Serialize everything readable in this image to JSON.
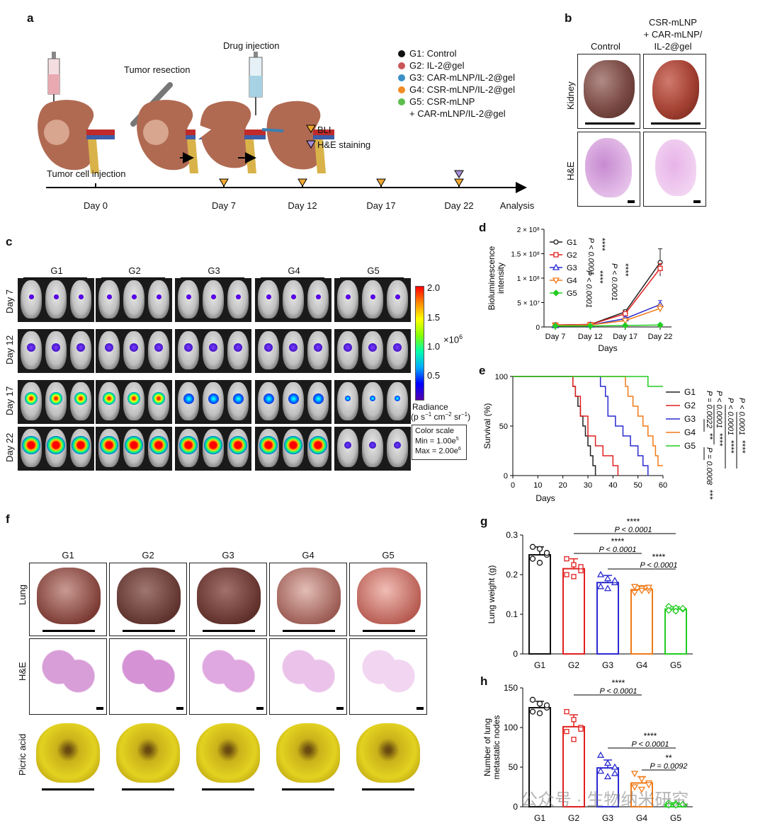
{
  "panel_a": {
    "label": "a",
    "drug_injection": "Drug injection",
    "tumor_resection": "Tumor resection",
    "tumor_cell_injection": "Tumor cell injection",
    "legend": [
      "G1: Control",
      "G2: IL-2@gel",
      "G3: CAR-mLNP/IL-2@gel",
      "G4: CSR-mLNP/IL-2@gel",
      "G5: CSR-mLNP",
      "+ CAR-mLNP/IL-2@gel"
    ],
    "legend_colors": [
      "#111111",
      "#c9575a",
      "#3a8fc6",
      "#f08c24",
      "#5cbd4d"
    ],
    "markers": [
      "BLI",
      "H&E staining"
    ],
    "timeline": [
      "Day 0",
      "Day 7",
      "Day 12",
      "Day 17",
      "Day 22",
      "Analysis"
    ]
  },
  "panel_b": {
    "label": "b",
    "col1": "Control",
    "col2_line1": "CSR-mLNP",
    "col2_line2": "+ CAR-mLNP/",
    "col2_line3": "IL-2@gel",
    "row1": "Kidney",
    "row2": "H&E"
  },
  "panel_c": {
    "label": "c",
    "groups": [
      "G1",
      "G2",
      "G3",
      "G4",
      "G5"
    ],
    "days": [
      "Day 7",
      "Day 12",
      "Day 17",
      "Day 22"
    ],
    "colorbar_ticks": [
      "2.0",
      "1.5",
      "1.0",
      "0.5"
    ],
    "colorbar_unit": "×10",
    "colorbar_exp": "6",
    "radiance_l1": "Radiance",
    "radiance_l2": "(p s",
    "color_scale": "Color scale",
    "min": "Min = 1.00e",
    "min_exp": "5",
    "max": "Max = 2.00e",
    "max_exp": "6"
  },
  "panel_f": {
    "label": "f",
    "groups": [
      "G1",
      "G2",
      "G3",
      "G4",
      "G5"
    ],
    "rows": [
      "Lung",
      "H&E",
      "Picric acid"
    ]
  },
  "watermark": "公众号 · 生物纳米研究",
  "chart_data": [
    {
      "id": "d",
      "label": "d",
      "type": "line",
      "ylabel": "Bioluminescence intensity",
      "xlabel": "Days",
      "categories": [
        "Day 7",
        "Day 12",
        "Day 17",
        "Day 22"
      ],
      "yticks": [
        "0",
        "5 × 10⁷",
        "1 × 10⁸",
        "1.5 × 10⁸",
        "2 × 10⁸"
      ],
      "ylim": [
        0,
        200000000
      ],
      "series": [
        {
          "name": "G1",
          "color": "#222222",
          "marker": "circle",
          "values": [
            4000000,
            5000000,
            31000000,
            132000000
          ],
          "err": [
            0,
            0,
            4000000,
            28000000
          ]
        },
        {
          "name": "G2",
          "color": "#e02020",
          "marker": "square",
          "values": [
            4000000,
            5000000,
            27000000,
            120000000
          ],
          "err": [
            0,
            0,
            3000000,
            10000000
          ]
        },
        {
          "name": "G3",
          "color": "#2a2ad0",
          "marker": "triangle",
          "values": [
            3000000,
            4000000,
            17000000,
            46000000
          ],
          "err": [
            0,
            0,
            3000000,
            8000000
          ]
        },
        {
          "name": "G4",
          "color": "#f07a18",
          "marker": "triangle-down",
          "values": [
            3000000,
            4000000,
            13000000,
            38000000
          ],
          "err": [
            0,
            0,
            3000000,
            8000000
          ]
        },
        {
          "name": "G5",
          "color": "#22cc22",
          "marker": "diamond",
          "values": [
            2000000,
            2000000,
            3000000,
            4000000
          ],
          "err": [
            0,
            0,
            0,
            0
          ]
        }
      ],
      "annotations": [
        "P < 0.0001",
        "****",
        "P < 0.0001",
        "****",
        "P < 0.0001",
        "****"
      ]
    },
    {
      "id": "e",
      "label": "e",
      "type": "line",
      "step": true,
      "ylabel": "Survival (%)",
      "xlabel": "Days",
      "xticks": [
        "0",
        "10",
        "20",
        "30",
        "40",
        "50",
        "60"
      ],
      "yticks": [
        "0",
        "50",
        "100"
      ],
      "xlim": [
        0,
        60
      ],
      "ylim": [
        0,
        100
      ],
      "series": [
        {
          "name": "G1",
          "color": "#222222",
          "points": [
            [
              0,
              100
            ],
            [
              24,
              100
            ],
            [
              24,
              90
            ],
            [
              25,
              90
            ],
            [
              25,
              80
            ],
            [
              26,
              80
            ],
            [
              26,
              70
            ],
            [
              27,
              70
            ],
            [
              27,
              60
            ],
            [
              28,
              60
            ],
            [
              28,
              50
            ],
            [
              29,
              50
            ],
            [
              29,
              40
            ],
            [
              30,
              40
            ],
            [
              30,
              30
            ],
            [
              31,
              30
            ],
            [
              31,
              20
            ],
            [
              32,
              20
            ],
            [
              32,
              10
            ],
            [
              33,
              10
            ],
            [
              33,
              0
            ]
          ]
        },
        {
          "name": "G2",
          "color": "#e02020",
          "points": [
            [
              0,
              100
            ],
            [
              24,
              100
            ],
            [
              24,
              90
            ],
            [
              25,
              90
            ],
            [
              25,
              80
            ],
            [
              27,
              80
            ],
            [
              27,
              60
            ],
            [
              30,
              60
            ],
            [
              30,
              40
            ],
            [
              33,
              40
            ],
            [
              33,
              30
            ],
            [
              36,
              30
            ],
            [
              36,
              20
            ],
            [
              40,
              20
            ],
            [
              40,
              10
            ],
            [
              42,
              10
            ],
            [
              42,
              0
            ]
          ]
        },
        {
          "name": "G3",
          "color": "#2a2ad0",
          "points": [
            [
              0,
              100
            ],
            [
              35,
              100
            ],
            [
              35,
              90
            ],
            [
              37,
              90
            ],
            [
              37,
              80
            ],
            [
              38,
              80
            ],
            [
              38,
              60
            ],
            [
              41,
              60
            ],
            [
              41,
              50
            ],
            [
              44,
              50
            ],
            [
              44,
              40
            ],
            [
              47,
              40
            ],
            [
              47,
              30
            ],
            [
              50,
              30
            ],
            [
              50,
              20
            ],
            [
              52,
              20
            ],
            [
              52,
              10
            ],
            [
              54,
              10
            ],
            [
              54,
              0
            ]
          ]
        },
        {
          "name": "G4",
          "color": "#f07a18",
          "points": [
            [
              0,
              100
            ],
            [
              45,
              100
            ],
            [
              45,
              90
            ],
            [
              46,
              90
            ],
            [
              46,
              80
            ],
            [
              48,
              80
            ],
            [
              48,
              70
            ],
            [
              50,
              70
            ],
            [
              50,
              60
            ],
            [
              52,
              60
            ],
            [
              52,
              50
            ],
            [
              54,
              50
            ],
            [
              54,
              40
            ],
            [
              56,
              40
            ],
            [
              56,
              30
            ],
            [
              57,
              30
            ],
            [
              57,
              20
            ],
            [
              58,
              20
            ],
            [
              58,
              10
            ],
            [
              60,
              10
            ]
          ]
        },
        {
          "name": "G5",
          "color": "#22cc22",
          "points": [
            [
              0,
              100
            ],
            [
              54,
              100
            ],
            [
              54,
              90
            ],
            [
              60,
              90
            ]
          ]
        }
      ],
      "annotations": [
        {
          "p": "P = 0.0022",
          "stars": "**"
        },
        {
          "p": "P < 0.0001",
          "stars": "****"
        },
        {
          "p": "P < 0.0001",
          "stars": "****"
        },
        {
          "p": "P < 0.0001",
          "stars": "****"
        },
        {
          "p": "P = 0.0008",
          "stars": "***"
        }
      ]
    },
    {
      "id": "g",
      "label": "g",
      "type": "bar",
      "ylabel": "Lung weight (g)",
      "categories": [
        "G1",
        "G2",
        "G3",
        "G4",
        "G5"
      ],
      "colors": [
        "#111111",
        "#e02020",
        "#2a2ad0",
        "#f07a18",
        "#22cc22"
      ],
      "values": [
        0.25,
        0.215,
        0.18,
        0.162,
        0.113
      ],
      "err": [
        0.02,
        0.025,
        0.018,
        0.01,
        0.006
      ],
      "points": [
        [
          0.27,
          0.265,
          0.25,
          0.24,
          0.23,
          0.255
        ],
        [
          0.24,
          0.225,
          0.21,
          0.2,
          0.195,
          0.22
        ],
        [
          0.2,
          0.19,
          0.18,
          0.17,
          0.165,
          0.185
        ],
        [
          0.17,
          0.165,
          0.16,
          0.155,
          0.16,
          0.168
        ],
        [
          0.12,
          0.116,
          0.113,
          0.11,
          0.108,
          0.115
        ]
      ],
      "ylim": [
        0,
        0.3
      ],
      "yticks": [
        "0",
        "0.1",
        "0.2",
        "0.3"
      ],
      "annotations": [
        {
          "stars": "****",
          "p": "P < 0.0001"
        },
        {
          "stars": "****",
          "p": "P < 0.0001"
        },
        {
          "stars": "****",
          "p": "P < 0.0001"
        }
      ]
    },
    {
      "id": "h",
      "label": "h",
      "type": "bar",
      "ylabel": "Number of lung metastatic nodes",
      "categories": [
        "G1",
        "G2",
        "G3",
        "G4",
        "G5"
      ],
      "colors": [
        "#111111",
        "#e02020",
        "#2a2ad0",
        "#f07a18",
        "#22cc22"
      ],
      "values": [
        125,
        101,
        49,
        30,
        3
      ],
      "err": [
        8,
        15,
        10,
        8,
        2
      ],
      "points": [
        [
          135,
          130,
          125,
          120,
          118,
          128
        ],
        [
          120,
          110,
          100,
          95,
          85,
          98
        ],
        [
          65,
          55,
          50,
          45,
          38,
          42
        ],
        [
          42,
          35,
          30,
          25,
          22,
          28
        ],
        [
          5,
          4,
          3,
          2,
          2,
          3
        ]
      ],
      "ylim": [
        0,
        150
      ],
      "yticks": [
        "0",
        "50",
        "100",
        "150"
      ],
      "annotations": [
        {
          "stars": "****",
          "p": "P < 0.0001"
        },
        {
          "stars": "****",
          "p": "P < 0.0001"
        },
        {
          "stars": "**",
          "p": "P = 0.0092"
        }
      ]
    }
  ]
}
